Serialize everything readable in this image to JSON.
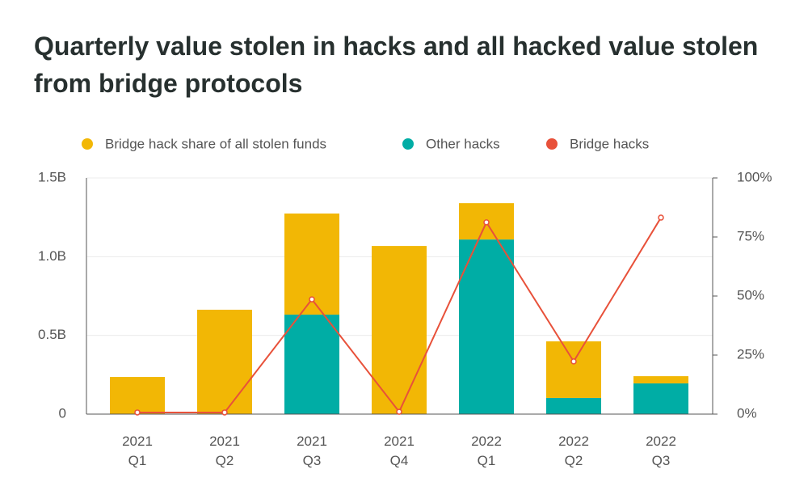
{
  "chart_data": {
    "type": "bar",
    "title": "Quarterly value stolen in hacks and all hacked value stolen from bridge protocols",
    "categories": [
      "2021 Q1",
      "2021 Q2",
      "2021 Q3",
      "2021 Q4",
      "2022 Q1",
      "2022 Q2",
      "2022 Q3"
    ],
    "series": [
      {
        "name": "Bridge hack share of all stolen funds",
        "color": "#f2b705",
        "type": "bar",
        "values": [
          0.236,
          0.663,
          0.642,
          1.068,
          0.231,
          0.359,
          0.046
        ]
      },
      {
        "name": "Other hacks",
        "color": "#00ada5",
        "type": "bar",
        "values": [
          0,
          0,
          0.632,
          0,
          1.109,
          0.103,
          0.195
        ]
      },
      {
        "name": "Bridge hacks",
        "color": "#e8513a",
        "type": "line",
        "axis": "y2",
        "values": [
          0.7,
          0.7,
          48.6,
          1,
          81.2,
          22.3,
          83.2
        ]
      }
    ],
    "ylim": [
      0,
      1.5
    ],
    "yticks": [
      0,
      {
        "value": 0.5,
        "label": "0.5B"
      },
      {
        "value": 1.0,
        "label": "1.0B"
      },
      {
        "value": 1.5,
        "label": "1.5B"
      }
    ],
    "y2lim": [
      0,
      100
    ],
    "y2ticks": [
      {
        "value": 0,
        "label": "0%"
      },
      {
        "value": 25,
        "label": "25%"
      },
      {
        "value": 50,
        "label": "50%"
      },
      {
        "value": 75,
        "label": "75%"
      },
      {
        "value": 100,
        "label": "100%"
      }
    ],
    "grid": true
  }
}
